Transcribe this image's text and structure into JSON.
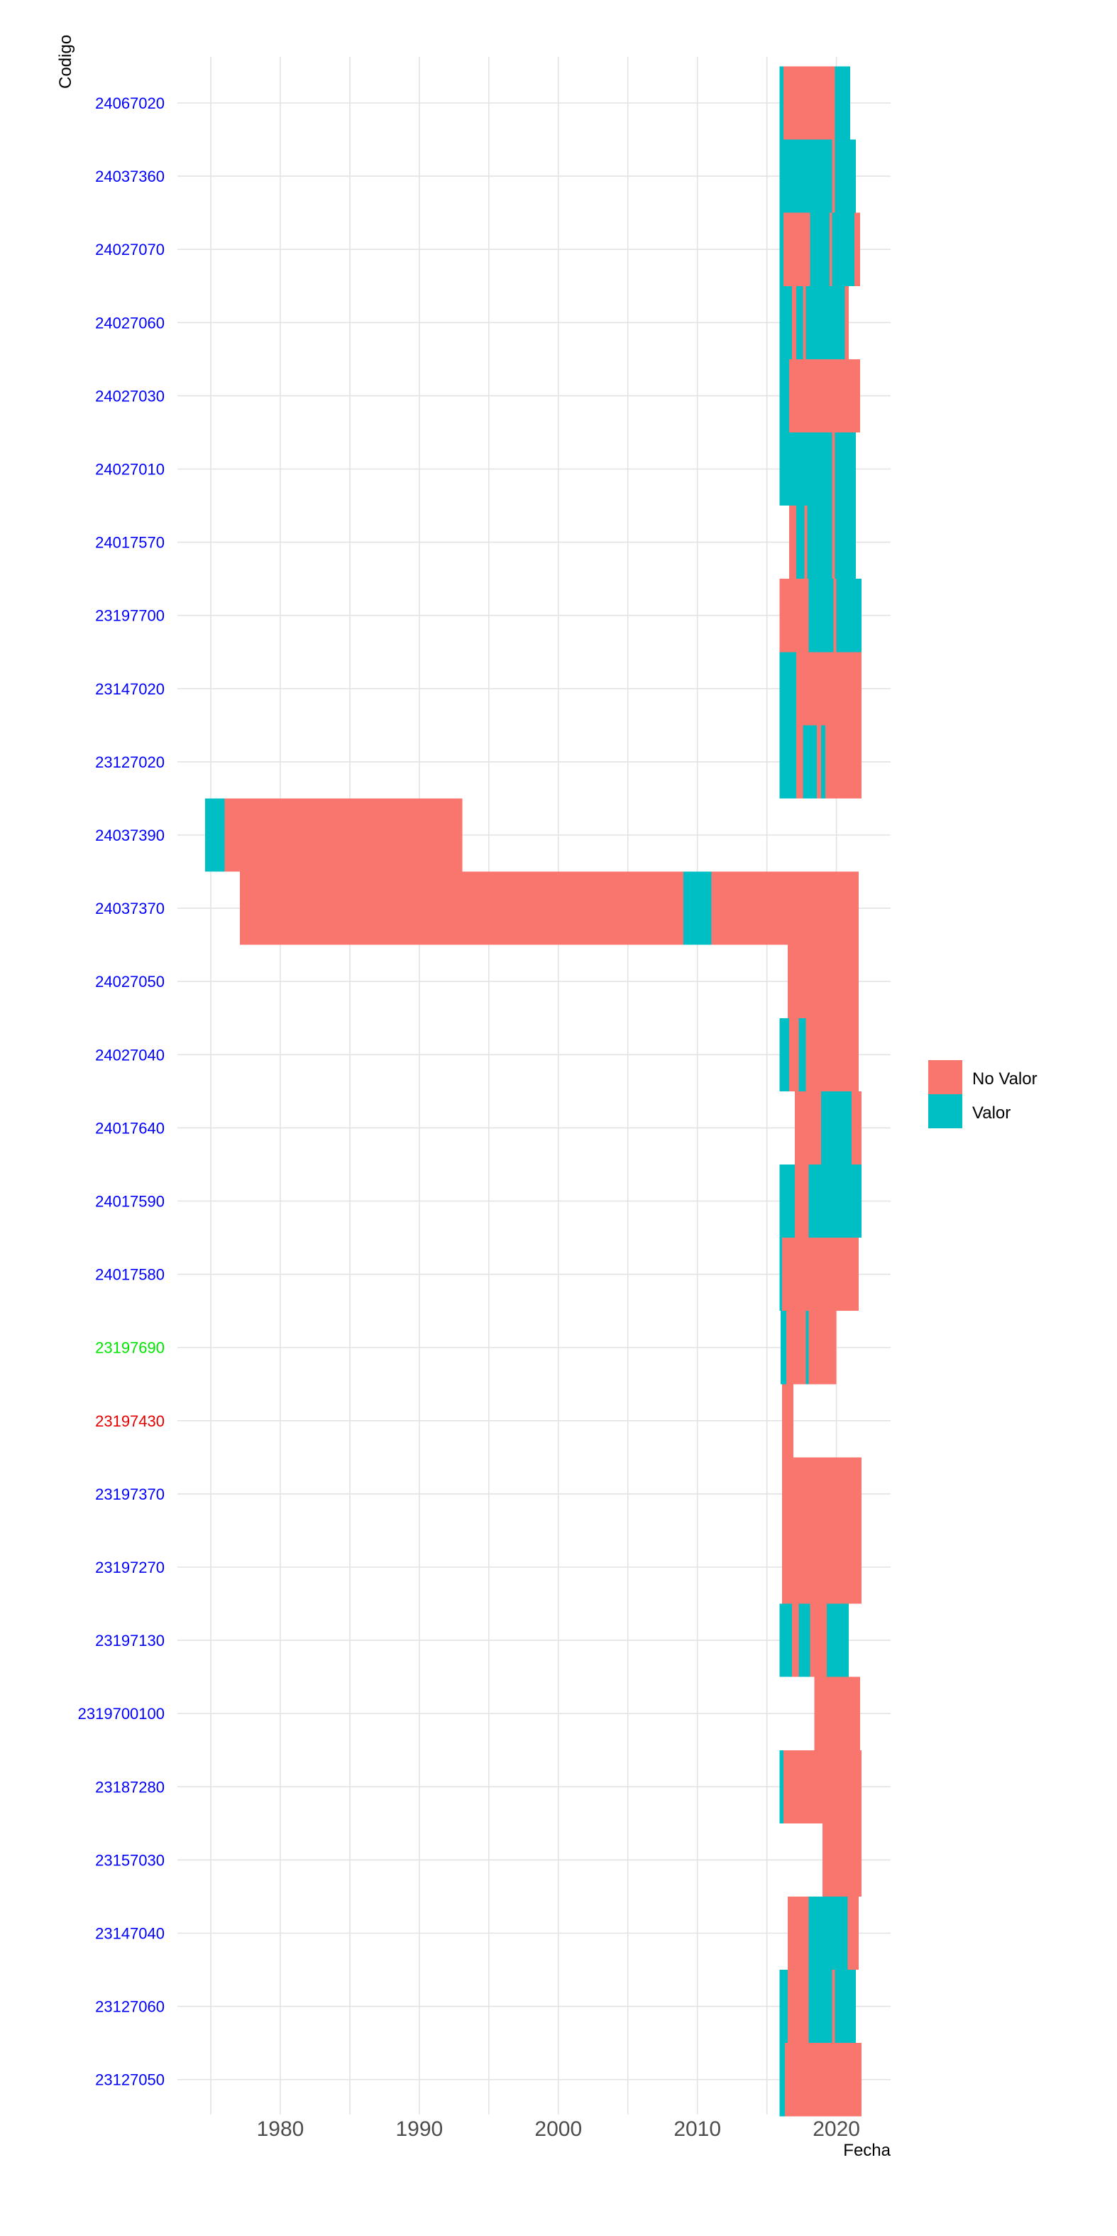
{
  "colors": {
    "No Valor": "#F8766D",
    "Valor": "#00BFC4",
    "grid": "#e3e3e3",
    "label_default": "#0000ff",
    "label_green": "#00e600",
    "label_red": "#e60000"
  },
  "chart_data": {
    "type": "heatmap",
    "title": "",
    "xlabel": "Fecha",
    "ylabel": "Codigo",
    "xlim": [
      1972.6,
      2023.9
    ],
    "xticks": [
      1980,
      1990,
      2000,
      2010,
      2020
    ],
    "grid": true,
    "legend": {
      "placement": "right",
      "entries": [
        "No Valor",
        "Valor"
      ]
    },
    "rows": [
      {
        "code": "24067020",
        "color": "label_default",
        "segments": [
          [
            2015.9,
            2016.2,
            "Valor"
          ],
          [
            2016.2,
            2019.9,
            "No Valor"
          ],
          [
            2019.9,
            2021.0,
            "Valor"
          ]
        ]
      },
      {
        "code": "24037360",
        "color": "label_default",
        "segments": [
          [
            2015.9,
            2019.7,
            "Valor"
          ],
          [
            2019.7,
            2019.9,
            "No Valor"
          ],
          [
            2019.9,
            2021.4,
            "Valor"
          ]
        ]
      },
      {
        "code": "24027070",
        "color": "label_default",
        "segments": [
          [
            2015.9,
            2016.2,
            "Valor"
          ],
          [
            2016.2,
            2018.1,
            "No Valor"
          ],
          [
            2018.1,
            2019.5,
            "Valor"
          ],
          [
            2019.5,
            2019.7,
            "No Valor"
          ],
          [
            2019.7,
            2021.3,
            "Valor"
          ],
          [
            2021.3,
            2021.7,
            "No Valor"
          ]
        ]
      },
      {
        "code": "24027060",
        "color": "label_default",
        "segments": [
          [
            2015.9,
            2016.8,
            "Valor"
          ],
          [
            2016.8,
            2017.1,
            "No Valor"
          ],
          [
            2017.1,
            2017.6,
            "Valor"
          ],
          [
            2017.6,
            2017.8,
            "No Valor"
          ],
          [
            2017.8,
            2018.2,
            "Valor"
          ],
          [
            2018.2,
            2020.6,
            "Valor"
          ],
          [
            2020.6,
            2020.9,
            "No Valor"
          ]
        ]
      },
      {
        "code": "24027030",
        "color": "label_default",
        "segments": [
          [
            2015.9,
            2016.6,
            "Valor"
          ],
          [
            2016.6,
            2021.7,
            "No Valor"
          ]
        ]
      },
      {
        "code": "24027010",
        "color": "label_default",
        "segments": [
          [
            2015.9,
            2019.7,
            "Valor"
          ],
          [
            2019.7,
            2019.9,
            "No Valor"
          ],
          [
            2019.9,
            2021.4,
            "Valor"
          ]
        ]
      },
      {
        "code": "24017570",
        "color": "label_default",
        "segments": [
          [
            2016.6,
            2017.1,
            "No Valor"
          ],
          [
            2017.1,
            2017.7,
            "Valor"
          ],
          [
            2017.7,
            2017.9,
            "No Valor"
          ],
          [
            2017.9,
            2019.7,
            "Valor"
          ],
          [
            2019.7,
            2019.9,
            "No Valor"
          ],
          [
            2019.9,
            2021.4,
            "Valor"
          ]
        ]
      },
      {
        "code": "23197700",
        "color": "label_default",
        "segments": [
          [
            2015.9,
            2018.0,
            "No Valor"
          ],
          [
            2018.0,
            2019.8,
            "Valor"
          ],
          [
            2019.8,
            2020.0,
            "No Valor"
          ],
          [
            2020.0,
            2021.8,
            "Valor"
          ]
        ]
      },
      {
        "code": "23147020",
        "color": "label_default",
        "segments": [
          [
            2015.9,
            2017.1,
            "Valor"
          ],
          [
            2017.1,
            2021.8,
            "No Valor"
          ]
        ]
      },
      {
        "code": "23127020",
        "color": "label_default",
        "segments": [
          [
            2015.9,
            2017.1,
            "Valor"
          ],
          [
            2017.1,
            2017.6,
            "No Valor"
          ],
          [
            2017.6,
            2018.6,
            "Valor"
          ],
          [
            2018.6,
            2018.9,
            "No Valor"
          ],
          [
            2018.9,
            2019.2,
            "Valor"
          ],
          [
            2019.2,
            2021.8,
            "No Valor"
          ]
        ]
      },
      {
        "code": "24037390",
        "color": "label_default",
        "segments": [
          [
            1974.6,
            1976.0,
            "Valor"
          ],
          [
            1976.0,
            1987.6,
            "No Valor"
          ],
          [
            1987.6,
            1993.1,
            "No Valor"
          ]
        ]
      },
      {
        "code": "24037370",
        "color": "label_default",
        "segments": [
          [
            1977.1,
            2009.0,
            "No Valor"
          ],
          [
            2009.0,
            2011.0,
            "Valor"
          ],
          [
            2011.0,
            2015.9,
            "No Valor"
          ],
          [
            2015.9,
            2021.6,
            "No Valor"
          ]
        ]
      },
      {
        "code": "24027050",
        "color": "label_default",
        "segments": [
          [
            2016.5,
            2021.6,
            "No Valor"
          ]
        ]
      },
      {
        "code": "24027040",
        "color": "label_default",
        "segments": [
          [
            2015.9,
            2016.6,
            "Valor"
          ],
          [
            2016.6,
            2017.3,
            "No Valor"
          ],
          [
            2017.3,
            2017.8,
            "Valor"
          ],
          [
            2017.8,
            2021.6,
            "No Valor"
          ]
        ]
      },
      {
        "code": "24017640",
        "color": "label_default",
        "segments": [
          [
            2017.0,
            2018.9,
            "No Valor"
          ],
          [
            2018.9,
            2020.6,
            "Valor"
          ],
          [
            2020.6,
            2021.1,
            "Valor"
          ],
          [
            2021.1,
            2021.8,
            "No Valor"
          ]
        ]
      },
      {
        "code": "24017590",
        "color": "label_default",
        "segments": [
          [
            2015.9,
            2017.0,
            "Valor"
          ],
          [
            2017.0,
            2018.0,
            "No Valor"
          ],
          [
            2018.0,
            2021.8,
            "Valor"
          ]
        ]
      },
      {
        "code": "24017580",
        "color": "label_default",
        "segments": [
          [
            2015.9,
            2016.1,
            "Valor"
          ],
          [
            2016.1,
            2021.6,
            "No Valor"
          ]
        ]
      },
      {
        "code": "23197690",
        "color": "label_green",
        "segments": [
          [
            2016.0,
            2016.4,
            "Valor"
          ],
          [
            2016.4,
            2017.8,
            "No Valor"
          ],
          [
            2017.8,
            2018.0,
            "Valor"
          ],
          [
            2018.0,
            2020.0,
            "No Valor"
          ]
        ]
      },
      {
        "code": "23197430",
        "color": "label_red",
        "segments": [
          [
            2016.1,
            2016.9,
            "No Valor"
          ]
        ]
      },
      {
        "code": "23197370",
        "color": "label_default",
        "segments": [
          [
            2016.1,
            2021.8,
            "No Valor"
          ]
        ]
      },
      {
        "code": "23197270",
        "color": "label_default",
        "segments": [
          [
            2016.1,
            2021.8,
            "No Valor"
          ]
        ]
      },
      {
        "code": "23197130",
        "color": "label_default",
        "segments": [
          [
            2015.9,
            2016.8,
            "Valor"
          ],
          [
            2016.8,
            2017.3,
            "No Valor"
          ],
          [
            2017.3,
            2018.1,
            "Valor"
          ],
          [
            2018.1,
            2019.3,
            "No Valor"
          ],
          [
            2019.3,
            2020.9,
            "Valor"
          ]
        ]
      },
      {
        "code": "2319700100",
        "color": "label_default",
        "segments": [
          [
            2018.4,
            2021.7,
            "No Valor"
          ]
        ]
      },
      {
        "code": "23187280",
        "color": "label_default",
        "segments": [
          [
            2015.9,
            2016.2,
            "Valor"
          ],
          [
            2016.2,
            2021.8,
            "No Valor"
          ]
        ]
      },
      {
        "code": "23157030",
        "color": "label_default",
        "segments": [
          [
            2019.0,
            2021.8,
            "No Valor"
          ]
        ]
      },
      {
        "code": "23147040",
        "color": "label_default",
        "segments": [
          [
            2016.5,
            2018.0,
            "No Valor"
          ],
          [
            2018.0,
            2020.1,
            "Valor"
          ],
          [
            2020.1,
            2020.8,
            "Valor"
          ],
          [
            2020.8,
            2021.6,
            "No Valor"
          ]
        ]
      },
      {
        "code": "23127060",
        "color": "label_default",
        "segments": [
          [
            2015.9,
            2016.5,
            "Valor"
          ],
          [
            2016.5,
            2018.0,
            "No Valor"
          ],
          [
            2018.0,
            2019.7,
            "Valor"
          ],
          [
            2019.7,
            2019.9,
            "No Valor"
          ],
          [
            2019.9,
            2021.4,
            "Valor"
          ]
        ]
      },
      {
        "code": "23127050",
        "color": "label_default",
        "segments": [
          [
            2015.9,
            2016.3,
            "Valor"
          ],
          [
            2016.3,
            2021.8,
            "No Valor"
          ]
        ]
      }
    ]
  }
}
